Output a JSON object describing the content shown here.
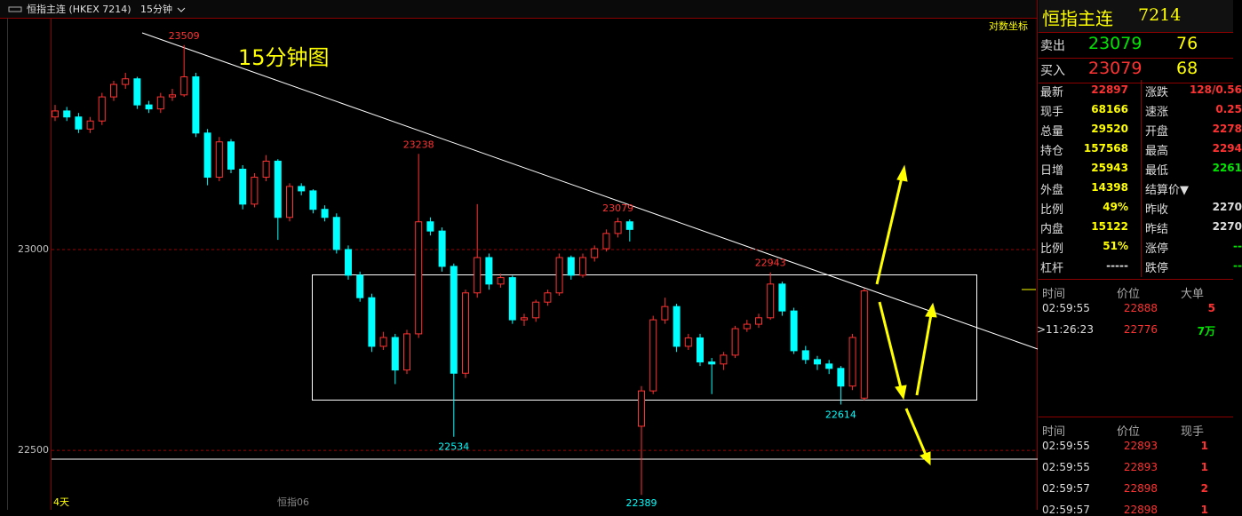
{
  "toolbar": {
    "symbol": "恒指主连 (HKEX 7214)",
    "period": "15分钟"
  },
  "chart_data": {
    "type": "candlestick",
    "title": "15分钟图",
    "scale_label": "对数坐标",
    "candles": [
      [
        23330,
        23360,
        23320,
        23345
      ],
      [
        23345,
        23355,
        23320,
        23330
      ],
      [
        23330,
        23340,
        23290,
        23300
      ],
      [
        23300,
        23330,
        23290,
        23320
      ],
      [
        23320,
        23390,
        23310,
        23380
      ],
      [
        23380,
        23420,
        23370,
        23411
      ],
      [
        23411,
        23440,
        23400,
        23425
      ],
      [
        23425,
        23430,
        23350,
        23360
      ],
      [
        23360,
        23370,
        23340,
        23350
      ],
      [
        23350,
        23390,
        23340,
        23380
      ],
      [
        23380,
        23400,
        23370,
        23385
      ],
      [
        23385,
        23509,
        23380,
        23430
      ],
      [
        23430,
        23440,
        23280,
        23290
      ],
      [
        23290,
        23300,
        23160,
        23180
      ],
      [
        23180,
        23280,
        23170,
        23268
      ],
      [
        23268,
        23275,
        23190,
        23200
      ],
      [
        23200,
        23210,
        23100,
        23113
      ],
      [
        23113,
        23190,
        23105,
        23180
      ],
      [
        23180,
        23235,
        23170,
        23220
      ],
      [
        23220,
        23225,
        23024,
        23080
      ],
      [
        23080,
        23165,
        23070,
        23157
      ],
      [
        23157,
        23165,
        23135,
        23146
      ],
      [
        23146,
        23150,
        23090,
        23100
      ],
      [
        23100,
        23110,
        23070,
        23080
      ],
      [
        23080,
        23090,
        22990,
        23000
      ],
      [
        23000,
        23010,
        22925,
        22936
      ],
      [
        22936,
        22945,
        22870,
        22880
      ],
      [
        22880,
        22890,
        22745,
        22759
      ],
      [
        22759,
        22795,
        22750,
        22781
      ],
      [
        22781,
        22790,
        22665,
        22700
      ],
      [
        22700,
        22800,
        22690,
        22790
      ],
      [
        22790,
        23238,
        22780,
        23069
      ],
      [
        23069,
        23080,
        23035,
        23046
      ],
      [
        23046,
        23055,
        22945,
        22958
      ],
      [
        22958,
        22965,
        22534,
        22692
      ],
      [
        22692,
        22900,
        22680,
        22892
      ],
      [
        22892,
        23113,
        22880,
        22980
      ],
      [
        22980,
        22990,
        22900,
        22914
      ],
      [
        22914,
        22940,
        22905,
        22930
      ],
      [
        22930,
        22935,
        22815,
        22825
      ],
      [
        22825,
        22840,
        22810,
        22830
      ],
      [
        22830,
        22875,
        22820,
        22869
      ],
      [
        22869,
        22900,
        22860,
        22892
      ],
      [
        22892,
        22990,
        22885,
        22980
      ],
      [
        22980,
        22985,
        22925,
        22936
      ],
      [
        22936,
        22990,
        22930,
        22980
      ],
      [
        22980,
        23010,
        22970,
        23002
      ],
      [
        23002,
        23050,
        22995,
        23040
      ],
      [
        23040,
        23079,
        23030,
        23069
      ],
      [
        23069,
        23075,
        23020,
        23050
      ],
      [
        22560,
        22660,
        22389,
        22648
      ],
      [
        22648,
        22835,
        22640,
        22825
      ],
      [
        22825,
        22880,
        22815,
        22858
      ],
      [
        22858,
        22865,
        22745,
        22759
      ],
      [
        22759,
        22790,
        22750,
        22780
      ],
      [
        22780,
        22790,
        22710,
        22720
      ],
      [
        22720,
        22730,
        22640,
        22715
      ],
      [
        22715,
        22745,
        22700,
        22737
      ],
      [
        22737,
        22810,
        22730,
        22803
      ],
      [
        22803,
        22825,
        22795,
        22814
      ],
      [
        22814,
        22840,
        22805,
        22830
      ],
      [
        22830,
        22943,
        22825,
        22914
      ],
      [
        22914,
        22920,
        22835,
        22847
      ],
      [
        22847,
        22855,
        22740,
        22748
      ],
      [
        22748,
        22760,
        22715,
        22726
      ],
      [
        22726,
        22735,
        22700,
        22715
      ],
      [
        22715,
        22725,
        22690,
        22704
      ],
      [
        22704,
        22710,
        22614,
        22660
      ],
      [
        22660,
        22790,
        22650,
        22781
      ],
      [
        22630,
        22903,
        22625,
        22897
      ]
    ],
    "high_labels": [
      23509,
      23238,
      23079,
      22943
    ],
    "low_labels": [
      22534,
      22389,
      22614
    ],
    "ylim": [
      22352,
      23577
    ],
    "yticks": [
      22500,
      23000
    ],
    "grid": true,
    "up_color": "#ff3232",
    "down_color": "#00ffff",
    "x_labels": [
      "4天",
      "恒指06"
    ]
  },
  "quote": {
    "name": "恒指主连",
    "code": "7214",
    "book": [
      {
        "label": "卖出",
        "price": 23079,
        "volume": 76
      },
      {
        "label": "买入",
        "price": 23079,
        "volume": 68
      }
    ],
    "stats": [
      [
        "最新",
        22897,
        "涨跌",
        "128/0.56"
      ],
      [
        "现手",
        68166,
        "速涨",
        "0.25"
      ],
      [
        "总量",
        29520,
        "开盘",
        "2278"
      ],
      [
        "持仓",
        157568,
        "最高",
        "2294"
      ],
      [
        "日增",
        25943,
        "最低",
        "2261"
      ],
      [
        "外盘",
        14398,
        "结算价▼",
        ""
      ],
      [
        "比例",
        "49%",
        "昨收",
        "2270"
      ],
      [
        "内盘",
        15122,
        "昨结",
        "2270"
      ],
      [
        "比例",
        "51%",
        "涨停",
        "--"
      ],
      [
        "杠杆",
        "-----",
        "跌停",
        "--"
      ]
    ]
  },
  "big_orders": {
    "header": [
      "时间",
      "价位",
      "大单"
    ],
    "rows": [
      [
        "02:59:55",
        22888,
        5
      ],
      [
        ">11:26:23",
        22776,
        "7万"
      ]
    ]
  },
  "ticks": {
    "header": [
      "时间",
      "价位",
      "现手"
    ],
    "rows": [
      [
        "02:59:55",
        22893,
        1
      ],
      [
        "02:59:55",
        22893,
        1
      ],
      [
        "02:59:57",
        22898,
        2
      ],
      [
        "02:59:57",
        22898,
        1
      ]
    ]
  }
}
